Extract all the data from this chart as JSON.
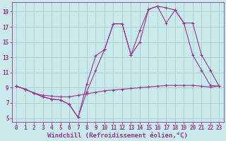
{
  "background_color": "#c8eaea",
  "line_color": "#993399",
  "grid_color": "#aacccc",
  "xlabel": "Windchill (Refroidissement éolien,°C)",
  "xlabel_fontsize": 6.5,
  "ylabel_ticks": [
    5,
    7,
    9,
    11,
    13,
    15,
    17,
    19
  ],
  "xlabel_ticks": [
    0,
    1,
    2,
    3,
    4,
    5,
    6,
    7,
    8,
    9,
    10,
    11,
    12,
    13,
    14,
    15,
    16,
    17,
    18,
    19,
    20,
    21,
    22,
    23
  ],
  "xlim": [
    -0.5,
    23.5
  ],
  "ylim": [
    4.5,
    20.2
  ],
  "series1_x": [
    0,
    1,
    2,
    3,
    4,
    5,
    6,
    7,
    8,
    9,
    10,
    11,
    12,
    13,
    14,
    15,
    16,
    17,
    18,
    19,
    20,
    21,
    22,
    23
  ],
  "series1_y": [
    9.2,
    8.8,
    8.3,
    8.0,
    7.9,
    7.8,
    7.8,
    8.0,
    8.2,
    8.4,
    8.6,
    8.7,
    8.8,
    8.9,
    9.0,
    9.1,
    9.2,
    9.3,
    9.3,
    9.3,
    9.3,
    9.2,
    9.1,
    9.2
  ],
  "series2_x": [
    0,
    1,
    2,
    3,
    4,
    5,
    6,
    7,
    8,
    9,
    10,
    11,
    12,
    13,
    14,
    15,
    16,
    17,
    18,
    19,
    20,
    21,
    22,
    23
  ],
  "series2_y": [
    9.2,
    8.8,
    8.3,
    7.8,
    7.5,
    7.4,
    6.8,
    5.1,
    8.5,
    11.3,
    14.0,
    17.4,
    17.4,
    13.3,
    15.0,
    19.3,
    19.7,
    19.5,
    19.2,
    17.5,
    13.3,
    11.3,
    9.3,
    9.2
  ],
  "series3_x": [
    0,
    1,
    2,
    3,
    4,
    5,
    6,
    7,
    8,
    9,
    10,
    11,
    12,
    13,
    14,
    15,
    16,
    17,
    18,
    19,
    20,
    21,
    22,
    23
  ],
  "series3_y": [
    9.2,
    8.8,
    8.3,
    7.8,
    7.5,
    7.4,
    6.8,
    5.1,
    9.5,
    13.2,
    14.0,
    17.4,
    17.4,
    13.3,
    16.5,
    19.3,
    19.7,
    17.5,
    19.2,
    17.5,
    17.5,
    13.3,
    11.3,
    9.2
  ],
  "marker": "+",
  "markersize": 3,
  "linewidth": 0.8
}
